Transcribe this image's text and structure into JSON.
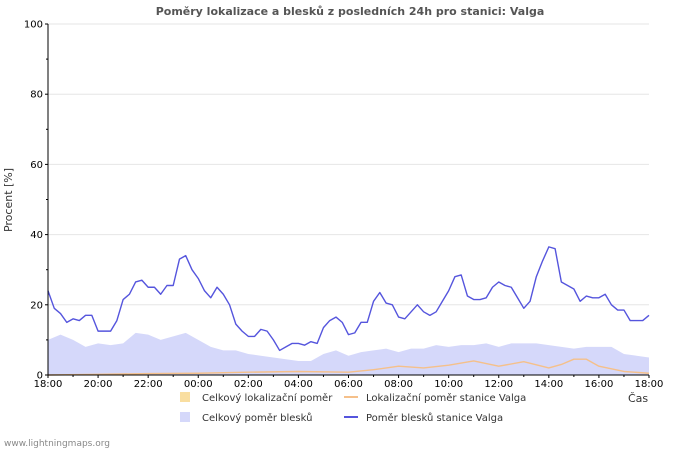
{
  "chart_data": {
    "type": "area",
    "title": "Poměry lokalizace a blesků z posledních 24h pro stanici: Valga",
    "ylabel": "Procent   [%]",
    "xlabel": "Čas",
    "ylim": [
      0,
      100
    ],
    "yticks": [
      0,
      20,
      40,
      60,
      80,
      100
    ],
    "x_tick_labels": [
      "18:00",
      "20:00",
      "22:00",
      "00:00",
      "02:00",
      "04:00",
      "06:00",
      "08:00",
      "10:00",
      "12:00",
      "14:00",
      "16:00",
      "18:00"
    ],
    "x_range_hours": [
      0,
      24
    ],
    "series": [
      {
        "name": "Celkový lokalizační poměr",
        "kind": "area",
        "color": "#f9dea0",
        "points": [
          [
            0,
            0.5
          ],
          [
            2,
            0.8
          ],
          [
            4,
            1
          ],
          [
            6,
            0.8
          ],
          [
            8,
            1
          ],
          [
            10,
            0.8
          ],
          [
            12,
            1.2
          ],
          [
            14,
            1.5
          ],
          [
            16,
            1.2
          ],
          [
            18,
            1.8
          ],
          [
            20,
            1.5
          ],
          [
            22,
            1.2
          ],
          [
            24,
            0.8
          ]
        ]
      },
      {
        "name": "Lokalizační poměr stanice Valga",
        "kind": "line",
        "color": "#f5c08a",
        "points": [
          [
            0,
            0
          ],
          [
            2,
            0.2
          ],
          [
            4,
            0.4
          ],
          [
            6,
            0.5
          ],
          [
            8,
            0.8
          ],
          [
            10,
            1
          ],
          [
            12,
            0.8
          ],
          [
            13,
            1.5
          ],
          [
            14,
            2.5
          ],
          [
            15,
            2
          ],
          [
            16,
            2.8
          ],
          [
            17,
            4
          ],
          [
            18,
            2.5
          ],
          [
            19,
            3.8
          ],
          [
            20,
            2
          ],
          [
            20.5,
            3
          ],
          [
            21,
            4.5
          ],
          [
            21.5,
            4.5
          ],
          [
            22,
            2.5
          ],
          [
            23,
            1
          ],
          [
            24,
            0.5
          ]
        ]
      },
      {
        "name": "Celkový poměr blesků",
        "kind": "area",
        "color": "#d5d8fa",
        "points": [
          [
            0,
            10
          ],
          [
            0.5,
            11.5
          ],
          [
            1,
            10
          ],
          [
            1.5,
            8
          ],
          [
            2,
            9
          ],
          [
            2.5,
            8.5
          ],
          [
            3,
            9
          ],
          [
            3.5,
            12
          ],
          [
            4,
            11.5
          ],
          [
            4.5,
            10
          ],
          [
            5,
            11
          ],
          [
            5.5,
            12
          ],
          [
            6,
            10
          ],
          [
            6.5,
            8
          ],
          [
            7,
            7
          ],
          [
            7.5,
            7
          ],
          [
            8,
            6
          ],
          [
            8.5,
            5.5
          ],
          [
            9,
            5
          ],
          [
            9.5,
            4.5
          ],
          [
            10,
            4
          ],
          [
            10.5,
            4
          ],
          [
            11,
            6
          ],
          [
            11.5,
            7
          ],
          [
            12,
            5.5
          ],
          [
            12.5,
            6.5
          ],
          [
            13,
            7
          ],
          [
            13.5,
            7.5
          ],
          [
            14,
            6.5
          ],
          [
            14.5,
            7.5
          ],
          [
            15,
            7.5
          ],
          [
            15.5,
            8.5
          ],
          [
            16,
            8
          ],
          [
            16.5,
            8.5
          ],
          [
            17,
            8.5
          ],
          [
            17.5,
            9
          ],
          [
            18,
            8
          ],
          [
            18.5,
            9
          ],
          [
            19,
            9
          ],
          [
            19.5,
            9
          ],
          [
            20,
            8.5
          ],
          [
            20.5,
            8
          ],
          [
            21,
            7.5
          ],
          [
            21.5,
            8
          ],
          [
            22,
            8
          ],
          [
            22.5,
            8
          ],
          [
            23,
            6
          ],
          [
            23.5,
            5.5
          ],
          [
            24,
            5
          ]
        ]
      },
      {
        "name": "Poměr blesků stanice Valga",
        "kind": "line",
        "color": "#5555dd",
        "points": [
          [
            0,
            24
          ],
          [
            0.25,
            19
          ],
          [
            0.5,
            17.5
          ],
          [
            0.75,
            15
          ],
          [
            1,
            16
          ],
          [
            1.25,
            15.5
          ],
          [
            1.5,
            17
          ],
          [
            1.75,
            17
          ],
          [
            2,
            12.5
          ],
          [
            2.25,
            12.5
          ],
          [
            2.5,
            12.5
          ],
          [
            2.75,
            15.5
          ],
          [
            3,
            21.5
          ],
          [
            3.25,
            23
          ],
          [
            3.5,
            26.5
          ],
          [
            3.75,
            27
          ],
          [
            4,
            25
          ],
          [
            4.25,
            25
          ],
          [
            4.5,
            23
          ],
          [
            4.75,
            25.5
          ],
          [
            5,
            25.5
          ],
          [
            5.25,
            33
          ],
          [
            5.5,
            34
          ],
          [
            5.75,
            30
          ],
          [
            6,
            27.5
          ],
          [
            6.25,
            24
          ],
          [
            6.5,
            22
          ],
          [
            6.75,
            25
          ],
          [
            7,
            23
          ],
          [
            7.25,
            20
          ],
          [
            7.5,
            14.5
          ],
          [
            7.75,
            12.5
          ],
          [
            8,
            11
          ],
          [
            8.25,
            11
          ],
          [
            8.5,
            13
          ],
          [
            8.75,
            12.5
          ],
          [
            9,
            10
          ],
          [
            9.25,
            7
          ],
          [
            9.5,
            8
          ],
          [
            9.75,
            9
          ],
          [
            10,
            9
          ],
          [
            10.25,
            8.5
          ],
          [
            10.5,
            9.5
          ],
          [
            10.75,
            9
          ],
          [
            11,
            13.5
          ],
          [
            11.25,
            15.5
          ],
          [
            11.5,
            16.5
          ],
          [
            11.75,
            15
          ],
          [
            12,
            11.5
          ],
          [
            12.25,
            12
          ],
          [
            12.5,
            15
          ],
          [
            12.75,
            15
          ],
          [
            13,
            21
          ],
          [
            13.25,
            23.5
          ],
          [
            13.5,
            20.5
          ],
          [
            13.75,
            20
          ],
          [
            14,
            16.5
          ],
          [
            14.25,
            16
          ],
          [
            14.5,
            18
          ],
          [
            14.75,
            20
          ],
          [
            15,
            18
          ],
          [
            15.25,
            17
          ],
          [
            15.5,
            18
          ],
          [
            15.75,
            21
          ],
          [
            16,
            24
          ],
          [
            16.25,
            28
          ],
          [
            16.5,
            28.5
          ],
          [
            16.75,
            22.5
          ],
          [
            17,
            21.5
          ],
          [
            17.25,
            21.5
          ],
          [
            17.5,
            22
          ],
          [
            17.75,
            25
          ],
          [
            18,
            26.5
          ],
          [
            18.25,
            25.5
          ],
          [
            18.5,
            25
          ],
          [
            18.75,
            22
          ],
          [
            19,
            19
          ],
          [
            19.25,
            21
          ],
          [
            19.5,
            28
          ],
          [
            19.75,
            32.5
          ],
          [
            20,
            36.5
          ],
          [
            20.25,
            36
          ],
          [
            20.5,
            26.5
          ],
          [
            20.75,
            25.5
          ],
          [
            21,
            24.5
          ],
          [
            21.25,
            21
          ],
          [
            21.5,
            22.5
          ],
          [
            21.75,
            22
          ],
          [
            22,
            22
          ],
          [
            22.25,
            23
          ],
          [
            22.5,
            20
          ],
          [
            22.75,
            18.5
          ],
          [
            23,
            18.5
          ],
          [
            23.25,
            15.5
          ],
          [
            23.5,
            15.5
          ],
          [
            23.75,
            15.5
          ],
          [
            24,
            17
          ]
        ]
      }
    ],
    "legend": [
      {
        "label": "Celkový lokalizační poměr",
        "kind": "swatch",
        "color": "#f9dea0"
      },
      {
        "label": "Lokalizační poměr stanice Valga",
        "kind": "line",
        "color": "#f5c08a"
      },
      {
        "label": "Celkový poměr blesků",
        "kind": "swatch",
        "color": "#d5d8fa"
      },
      {
        "label": "Poměr blesků stanice Valga",
        "kind": "line",
        "color": "#5555dd"
      }
    ]
  },
  "footer": {
    "credit": "www.lightningmaps.org"
  }
}
